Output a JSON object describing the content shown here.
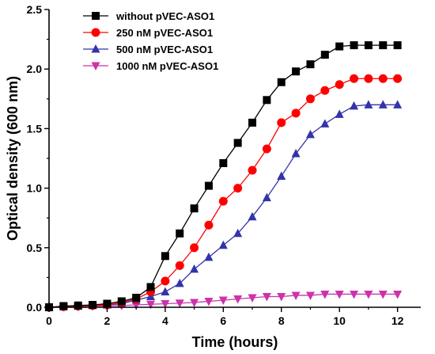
{
  "chart_data": {
    "type": "line",
    "title": "",
    "xlabel": "Time (hours)",
    "ylabel": "Optical density (600 nm)",
    "xlim": [
      0,
      12.8
    ],
    "ylim": [
      0,
      2.5
    ],
    "xticks": [
      0,
      2,
      4,
      6,
      8,
      10,
      12
    ],
    "yticks": [
      0.0,
      0.5,
      1.0,
      1.5,
      2.0,
      2.5
    ],
    "xtick_labels": [
      "0",
      "2",
      "4",
      "6",
      "8",
      "10",
      "12"
    ],
    "ytick_labels": [
      "0.0",
      "0.5",
      "1.0",
      "1.5",
      "2.0",
      "2.5"
    ],
    "grid": false,
    "legend_position": "top-left",
    "series": [
      {
        "name": "without pVEC-ASO1",
        "color": "#000000",
        "marker": "square",
        "x": [
          0,
          0.5,
          1,
          1.5,
          2,
          2.5,
          3,
          3.5,
          4,
          4.5,
          5,
          5.5,
          6,
          6.5,
          7,
          7.5,
          8,
          8.5,
          9,
          9.5,
          10,
          10.5,
          11,
          11.5,
          12
        ],
        "y": [
          0.0,
          0.01,
          0.015,
          0.02,
          0.03,
          0.05,
          0.08,
          0.17,
          0.43,
          0.62,
          0.83,
          1.02,
          1.21,
          1.38,
          1.55,
          1.74,
          1.89,
          1.98,
          2.04,
          2.12,
          2.19,
          2.2,
          2.2,
          2.2,
          2.2
        ]
      },
      {
        "name": "250 nM pVEC-ASO1",
        "color": "#ff0000",
        "marker": "circle",
        "x": [
          0,
          0.5,
          1,
          1.5,
          2,
          2.5,
          3,
          3.5,
          4,
          4.5,
          5,
          5.5,
          6,
          6.5,
          7,
          7.5,
          8,
          8.5,
          9,
          9.5,
          10,
          10.5,
          11,
          11.5,
          12
        ],
        "y": [
          0.0,
          0.005,
          0.01,
          0.015,
          0.02,
          0.04,
          0.07,
          0.13,
          0.22,
          0.35,
          0.5,
          0.69,
          0.89,
          1.0,
          1.15,
          1.33,
          1.55,
          1.63,
          1.75,
          1.82,
          1.87,
          1.92,
          1.92,
          1.92,
          1.92
        ]
      },
      {
        "name": "500 nM pVEC-ASO1",
        "color": "#3333aa",
        "marker": "triangle-up",
        "x": [
          0,
          0.5,
          1,
          1.5,
          2,
          2.5,
          3,
          3.5,
          4,
          4.5,
          5,
          5.5,
          6,
          6.5,
          7,
          7.5,
          8,
          8.5,
          9,
          9.5,
          10,
          10.5,
          11,
          11.5,
          12
        ],
        "y": [
          0.0,
          0.005,
          0.01,
          0.015,
          0.02,
          0.03,
          0.06,
          0.09,
          0.13,
          0.2,
          0.32,
          0.42,
          0.52,
          0.62,
          0.76,
          0.92,
          1.1,
          1.29,
          1.45,
          1.54,
          1.62,
          1.69,
          1.7,
          1.7,
          1.7
        ]
      },
      {
        "name": "1000 nM pVEC-ASO1",
        "color": "#cc33aa",
        "marker": "triangle-down",
        "x": [
          0,
          0.5,
          1,
          1.5,
          2,
          2.5,
          3,
          3.5,
          4,
          4.5,
          5,
          5.5,
          6,
          6.5,
          7,
          7.5,
          8,
          8.5,
          9,
          9.5,
          10,
          10.5,
          11,
          11.5,
          12
        ],
        "y": [
          0.0,
          0.003,
          0.005,
          0.01,
          0.012,
          0.015,
          0.02,
          0.025,
          0.03,
          0.035,
          0.04,
          0.05,
          0.06,
          0.07,
          0.08,
          0.09,
          0.09,
          0.1,
          0.1,
          0.11,
          0.11,
          0.11,
          0.11,
          0.11,
          0.11
        ]
      }
    ]
  }
}
